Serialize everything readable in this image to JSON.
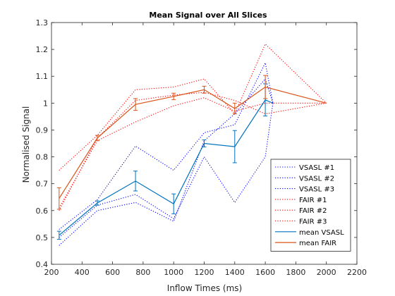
{
  "chart_data": {
    "type": "line",
    "title": "Mean Signal over All Slices",
    "xlabel": "Inflow Times (ms)",
    "ylabel": "Normalised Signal",
    "xlim": [
      200,
      2200
    ],
    "ylim": [
      0.4,
      1.3
    ],
    "xticks": [
      200,
      400,
      600,
      800,
      1000,
      1200,
      1400,
      1600,
      1800,
      2000,
      2200
    ],
    "yticks": [
      0.4,
      0.5,
      0.6,
      0.7,
      0.8,
      0.9,
      1.0,
      1.1,
      1.2,
      1.3
    ],
    "xtick_labels": [
      "200",
      "400",
      "600",
      "800",
      "1000",
      "1200",
      "1400",
      "1600",
      "1800",
      "2000",
      "2200"
    ],
    "ytick_labels": [
      "0.4",
      "0.5",
      "0.6",
      "0.7",
      "0.8",
      "0.9",
      "1",
      "1.1",
      "1.2",
      "1.3"
    ],
    "grid": false,
    "legend_position": "bottom-right",
    "series": [
      {
        "name": "VSASL #1",
        "color": "#0000ff",
        "style": "dotted",
        "x": [
          250,
          500,
          750,
          1000,
          1200,
          1400,
          1600,
          1650
        ],
        "y": [
          0.5,
          0.62,
          0.66,
          0.57,
          0.8,
          0.63,
          0.8,
          1.0
        ]
      },
      {
        "name": "VSASL #2",
        "color": "#0000ff",
        "style": "dotted",
        "x": [
          250,
          500,
          750,
          1000,
          1200,
          1400,
          1600,
          1650
        ],
        "y": [
          0.53,
          0.64,
          0.84,
          0.75,
          0.89,
          0.92,
          1.15,
          1.0
        ]
      },
      {
        "name": "VSASL #3",
        "color": "#0000ff",
        "style": "dotted",
        "x": [
          250,
          500,
          750,
          1000,
          1200,
          1400,
          1600,
          1650
        ],
        "y": [
          0.47,
          0.6,
          0.63,
          0.56,
          0.86,
          0.96,
          1.09,
          1.0
        ]
      },
      {
        "name": "FAIR #1",
        "color": "#ff0000",
        "style": "dotted",
        "x": [
          250,
          500,
          750,
          1000,
          1200,
          1400,
          1600,
          2000
        ],
        "y": [
          0.61,
          0.86,
          0.93,
          0.99,
          1.02,
          0.97,
          1.0,
          1.0
        ]
      },
      {
        "name": "FAIR #2",
        "color": "#ff0000",
        "style": "dotted",
        "x": [
          250,
          500,
          750,
          1000,
          1200,
          1400,
          1600,
          2000
        ],
        "y": [
          0.75,
          0.88,
          1.05,
          1.06,
          1.09,
          0.96,
          1.22,
          1.0
        ]
      },
      {
        "name": "FAIR #3",
        "color": "#ff0000",
        "style": "dotted",
        "x": [
          250,
          500,
          750,
          1000,
          1200,
          1400,
          1600,
          2000
        ],
        "y": [
          0.6,
          0.87,
          1.01,
          1.03,
          1.04,
          1.01,
          0.96,
          1.0
        ]
      },
      {
        "name": "mean VSASL",
        "color": "#0072bd",
        "style": "solid",
        "x": [
          250,
          500,
          750,
          1000,
          1200,
          1400,
          1600,
          1650
        ],
        "y": [
          0.508,
          0.628,
          0.71,
          0.625,
          0.85,
          0.838,
          1.012,
          1.0
        ],
        "err": [
          0.015,
          0.008,
          0.037,
          0.037,
          0.013,
          0.06,
          0.06,
          0
        ]
      },
      {
        "name": "mean FAIR",
        "color": "#d95319",
        "style": "solid",
        "x": [
          250,
          500,
          750,
          1000,
          1200,
          1400,
          1600,
          2000
        ],
        "y": [
          0.645,
          0.87,
          0.995,
          1.025,
          1.05,
          0.98,
          1.06,
          1.0
        ],
        "err": [
          0.04,
          0.01,
          0.022,
          0.012,
          0.013,
          0.02,
          0.043,
          0
        ]
      }
    ]
  }
}
